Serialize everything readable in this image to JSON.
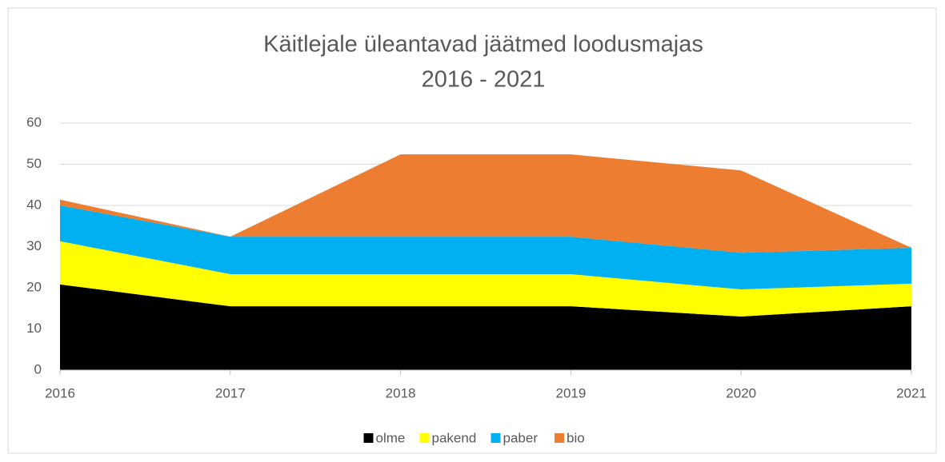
{
  "chart_data": {
    "type": "stacked_area",
    "title": "Käitlejale üleantavad jäätmed loodusmajas",
    "subtitle": "2016 - 2021",
    "categories": [
      "2016",
      "2017",
      "2018",
      "2019",
      "2020",
      "2021"
    ],
    "series": [
      {
        "name": "olme",
        "color": "#000000",
        "values": [
          20.8,
          15.5,
          15.5,
          15.5,
          13,
          15.5
        ]
      },
      {
        "name": "pakend",
        "color": "#ffff00",
        "values": [
          10.5,
          7.8,
          7.8,
          7.8,
          6.6,
          5.5
        ]
      },
      {
        "name": "paber",
        "color": "#00b0f0",
        "values": [
          8.7,
          9.1,
          9.1,
          9.1,
          8.9,
          8.7
        ]
      },
      {
        "name": "bio",
        "color": "#ed7d31",
        "values": [
          1.4,
          0,
          20,
          20,
          20,
          0
        ]
      }
    ],
    "ylim": [
      0,
      60
    ],
    "yticks": [
      0,
      10,
      20,
      30,
      40,
      50,
      60
    ],
    "grid": true,
    "legend": "bottom"
  }
}
